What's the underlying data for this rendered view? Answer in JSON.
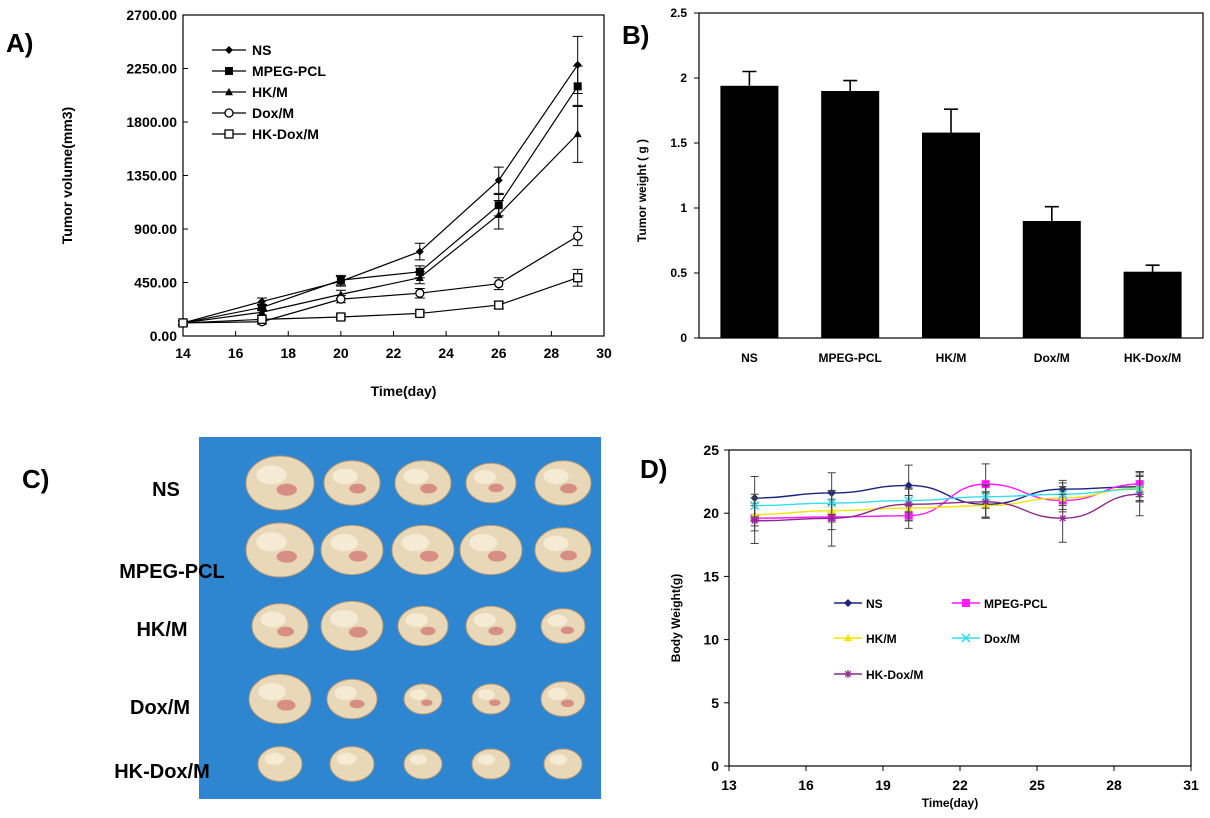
{
  "panels": {
    "a": "A)",
    "b": "B)",
    "c": "C)",
    "d": "D)"
  },
  "chart_data": [
    {
      "id": "A",
      "type": "line",
      "xlabel": "Time(day)",
      "ylabel": "Tumor volume(mm3)",
      "xlim": [
        14,
        30
      ],
      "ylim": [
        0,
        2700
      ],
      "xticks": [
        "14",
        "16",
        "18",
        "20",
        "22",
        "24",
        "26",
        "28",
        "30"
      ],
      "yticks": [
        "0.00",
        "450.00",
        "900.00",
        "1350.00",
        "1800.00",
        "2250.00",
        "2700.00"
      ],
      "x": [
        14,
        17,
        20,
        23,
        26,
        29
      ],
      "legend_position": "top-left",
      "series": [
        {
          "name": "NS",
          "marker": "diamond",
          "values": [
            110,
            290,
            460,
            710,
            1310,
            2280
          ],
          "errors": [
            20,
            30,
            40,
            70,
            110,
            240
          ]
        },
        {
          "name": "MPEG-PCL",
          "marker": "square",
          "values": [
            110,
            240,
            470,
            540,
            1100,
            2100
          ],
          "errors": [
            20,
            25,
            40,
            50,
            90,
            170
          ]
        },
        {
          "name": "HK/M",
          "marker": "triangle",
          "values": [
            110,
            200,
            350,
            490,
            1020,
            1700
          ],
          "errors": [
            20,
            25,
            35,
            50,
            120,
            240
          ]
        },
        {
          "name": "Dox/M",
          "marker": "circle-open",
          "values": [
            110,
            120,
            310,
            360,
            440,
            840
          ],
          "errors": [
            15,
            20,
            30,
            40,
            50,
            80
          ]
        },
        {
          "name": "HK-Dox/M",
          "marker": "square-open",
          "values": [
            110,
            140,
            160,
            190,
            260,
            490
          ],
          "errors": [
            15,
            15,
            20,
            20,
            30,
            70
          ]
        }
      ]
    },
    {
      "id": "B",
      "type": "bar",
      "xlabel": "",
      "ylabel": "Tumor weight ( g )",
      "ylim": [
        0,
        2.5
      ],
      "yticks": [
        "0",
        "0.5",
        "1",
        "1.5",
        "2",
        "2.5"
      ],
      "categories": [
        "NS",
        "MPEG-PCL",
        "HK/M",
        "Dox/M",
        "HK-Dox/M"
      ],
      "values": [
        1.94,
        1.9,
        1.58,
        0.9,
        0.51
      ],
      "errors": [
        0.11,
        0.08,
        0.18,
        0.11,
        0.05
      ]
    },
    {
      "id": "D",
      "type": "line",
      "xlabel": "Time(day)",
      "ylabel": "Body Weight(g)",
      "xlim": [
        13,
        31
      ],
      "ylim": [
        0,
        25
      ],
      "xticks": [
        "13",
        "16",
        "19",
        "22",
        "25",
        "28",
        "31"
      ],
      "yticks": [
        "0",
        "5",
        "10",
        "15",
        "20",
        "25"
      ],
      "x": [
        14,
        17,
        20,
        23,
        26,
        29
      ],
      "legend_position": "center",
      "series": [
        {
          "name": "NS",
          "color": "#1a237e",
          "marker": "diamond",
          "values": [
            21.2,
            21.6,
            22.2,
            20.7,
            21.9,
            22.1
          ],
          "errors": [
            1.7,
            1.6,
            1.6,
            1.0,
            0.7,
            1.2
          ]
        },
        {
          "name": "MPEG-PCL",
          "color": "#ff1aff",
          "marker": "square",
          "values": [
            19.6,
            19.7,
            19.8,
            22.3,
            21.0,
            22.3
          ],
          "errors": [
            1.0,
            1.0,
            1.0,
            1.6,
            0.9,
            1.0
          ]
        },
        {
          "name": "HK/M",
          "color": "#f4e500",
          "marker": "triangle",
          "values": [
            19.9,
            20.2,
            20.4,
            20.6,
            21.2,
            22.0
          ],
          "errors": [
            0.9,
            0.9,
            1.0,
            1.0,
            0.9,
            1.0
          ]
        },
        {
          "name": "Dox/M",
          "color": "#33ddee",
          "marker": "x",
          "values": [
            20.6,
            20.8,
            21.0,
            21.3,
            21.5,
            21.9
          ],
          "errors": [
            0.9,
            0.9,
            0.9,
            0.9,
            0.9,
            1.0
          ]
        },
        {
          "name": "HK-Dox/M",
          "color": "#8e2a8e",
          "marker": "star",
          "values": [
            19.4,
            19.6,
            20.7,
            20.9,
            19.6,
            21.5
          ],
          "errors": [
            1.8,
            2.2,
            1.3,
            1.3,
            1.9,
            1.7
          ]
        }
      ]
    }
  ],
  "photo": {
    "row_labels": [
      "NS",
      "MPEG-PCL",
      "HK/M",
      "Dox/M",
      "HK-Dox/M"
    ],
    "background_color": "#2e86d0",
    "tumor_counts": [
      5,
      5,
      5,
      5,
      5
    ],
    "tumor_sizes": [
      [
        1.0,
        0.8,
        0.8,
        0.7,
        0.8
      ],
      [
        1.0,
        0.9,
        0.9,
        0.9,
        0.8
      ],
      [
        0.8,
        0.9,
        0.7,
        0.7,
        0.6
      ],
      [
        0.9,
        0.7,
        0.5,
        0.5,
        0.6
      ],
      [
        0.6,
        0.6,
        0.5,
        0.5,
        0.5
      ]
    ]
  }
}
